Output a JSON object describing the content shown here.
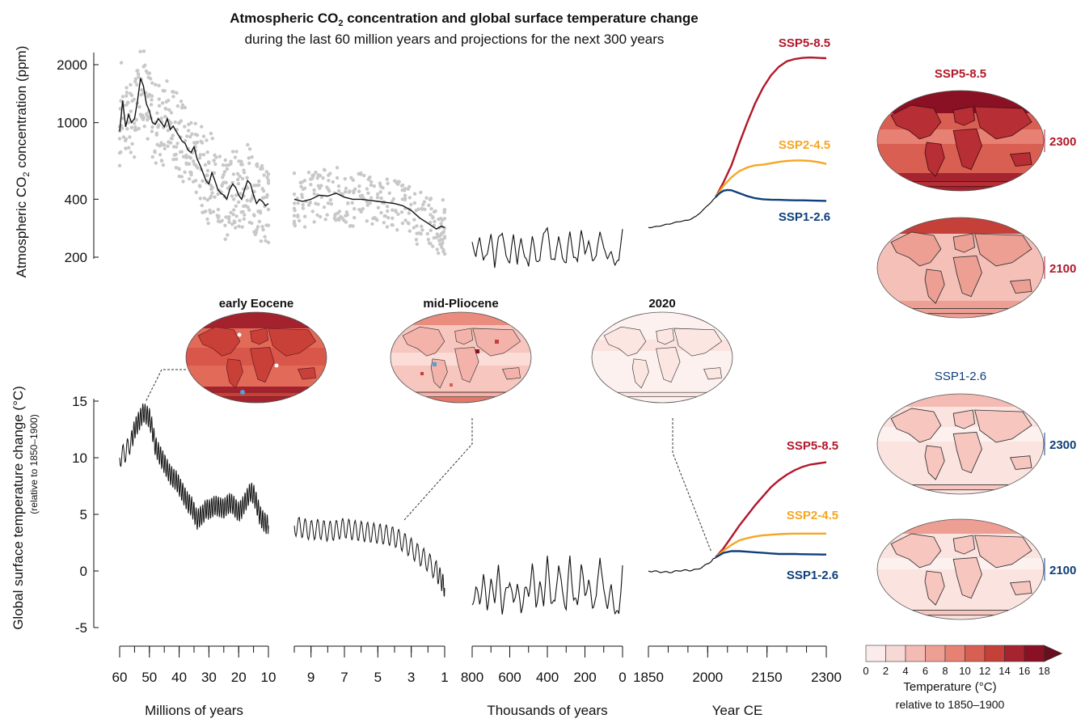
{
  "title": {
    "line1_prefix": "Atmospheric CO",
    "line1_sub": "2",
    "line1_suffix": " concentration and global surface temperature change",
    "line2": "during the last 60 million years and projections for the next 300 years"
  },
  "colors": {
    "ssp585": "#b2182b",
    "ssp245": "#f5a623",
    "ssp126": "#0f3f7a",
    "proxy_points": "#c8c8c8",
    "line": "#111111"
  },
  "maps": {
    "eocene_label": "early Eocene",
    "pliocene_label": "mid-Pliocene",
    "present_label": "2020",
    "high_header": "SSP5-8.5",
    "low_header": "SSP1-2.6",
    "year_2300": "2300",
    "year_2100": "2100"
  },
  "colorbar": {
    "ticks": [
      "0",
      "2",
      "4",
      "6",
      "8",
      "10",
      "12",
      "14",
      "16",
      "18"
    ],
    "colors": [
      "#fbeceb",
      "#f8d8d4",
      "#f3bbb3",
      "#ee9f94",
      "#e78173",
      "#d95f52",
      "#c44039",
      "#a52430",
      "#8a1024"
    ],
    "label_line1": "Temperature (°C)",
    "label_line2": "relative to 1850–1900"
  },
  "chart_data": [
    {
      "type": "line",
      "panel": "co2",
      "ylabel_prefix": "Atmospheric CO",
      "ylabel_sub": "2",
      "ylabel_suffix": " concentration (ppm)",
      "yscale": "log",
      "yticks": [
        200,
        400,
        1000,
        2000
      ],
      "ylim": [
        150,
        2600
      ],
      "segments": [
        {
          "name": "Millions of years",
          "xlim": [
            60,
            10
          ],
          "xticks": [
            60,
            50,
            40,
            30,
            20,
            10
          ],
          "x": [
            60,
            59,
            58,
            57,
            56,
            55,
            54,
            53,
            52,
            51,
            50,
            49,
            48,
            47,
            46,
            45,
            44,
            43,
            42,
            41,
            40,
            39,
            38,
            37,
            36,
            35,
            34,
            33,
            32,
            31,
            30,
            29,
            28,
            27,
            26,
            25,
            24,
            23,
            22,
            21,
            20,
            19,
            18,
            17,
            16,
            15,
            14,
            13,
            12,
            11,
            10
          ],
          "y": [
            900,
            1300,
            950,
            1100,
            1000,
            1050,
            1300,
            1700,
            1550,
            1250,
            1150,
            1000,
            980,
            1050,
            1000,
            950,
            1050,
            920,
            960,
            900,
            850,
            800,
            780,
            720,
            700,
            750,
            650,
            600,
            550,
            500,
            480,
            550,
            500,
            450,
            430,
            420,
            400,
            450,
            480,
            460,
            420,
            400,
            450,
            500,
            480,
            420,
            380,
            400,
            390,
            370,
            380
          ]
        },
        {
          "name": "Millions of years",
          "xlim": [
            10,
            1
          ],
          "xticks": [
            9,
            7,
            5,
            3,
            1
          ],
          "x": [
            10,
            9.5,
            9,
            8.5,
            8,
            7.5,
            7,
            6.5,
            6,
            5.5,
            5,
            4.5,
            4,
            3.5,
            3,
            2.5,
            2,
            1.5,
            1.2,
            1
          ],
          "y": [
            400,
            390,
            400,
            420,
            415,
            430,
            410,
            400,
            400,
            395,
            390,
            385,
            380,
            370,
            350,
            320,
            300,
            280,
            290,
            285
          ]
        },
        {
          "name": "Thousands of years",
          "xlim": [
            800,
            0
          ],
          "xticks": [
            800,
            600,
            400,
            200,
            0
          ],
          "x": [
            800,
            780,
            760,
            740,
            720,
            700,
            680,
            660,
            640,
            620,
            600,
            580,
            560,
            540,
            520,
            500,
            480,
            460,
            440,
            420,
            400,
            380,
            360,
            340,
            320,
            300,
            280,
            260,
            240,
            220,
            200,
            180,
            160,
            140,
            120,
            100,
            80,
            60,
            40,
            20,
            0
          ],
          "y": [
            240,
            200,
            255,
            190,
            210,
            260,
            180,
            250,
            270,
            200,
            190,
            260,
            185,
            250,
            200,
            180,
            255,
            195,
            190,
            270,
            280,
            200,
            190,
            260,
            195,
            190,
            270,
            200,
            190,
            275,
            210,
            240,
            195,
            200,
            275,
            220,
            200,
            210,
            185,
            190,
            280
          ]
        },
        {
          "name": "Year CE",
          "xlim": [
            1850,
            2300
          ],
          "xticks": [
            1850,
            2000,
            2150,
            2300
          ],
          "historical": {
            "x": [
              1850,
              1870,
              1890,
              1910,
              1930,
              1950,
              1970,
              1990,
              2010,
              2020
            ],
            "y": [
              285,
              288,
              294,
              300,
              307,
              311,
              325,
              354,
              389,
              410
            ]
          },
          "scenarios": [
            {
              "name": "SSP5-8.5",
              "x": [
                2020,
                2040,
                2060,
                2080,
                2100,
                2120,
                2140,
                2160,
                2180,
                2200,
                2220,
                2240,
                2260,
                2280,
                2300
              ],
              "y": [
                410,
                490,
                600,
                780,
                1000,
                1260,
                1520,
                1760,
                1950,
                2080,
                2140,
                2170,
                2180,
                2170,
                2160
              ]
            },
            {
              "name": "SSP2-4.5",
              "x": [
                2020,
                2040,
                2060,
                2080,
                2100,
                2120,
                2140,
                2160,
                2180,
                2200,
                2220,
                2240,
                2260,
                2280,
                2300
              ],
              "y": [
                410,
                470,
                520,
                560,
                585,
                600,
                605,
                615,
                625,
                632,
                636,
                636,
                632,
                624,
                610
              ]
            },
            {
              "name": "SSP1-2.6",
              "x": [
                2020,
                2030,
                2040,
                2050,
                2060,
                2080,
                2100,
                2120,
                2140,
                2160,
                2180,
                2200,
                2220,
                2240,
                2260,
                2280,
                2300
              ],
              "y": [
                410,
                430,
                443,
                447,
                445,
                430,
                415,
                405,
                400,
                398,
                397,
                396,
                395,
                395,
                394,
                393,
                392
              ]
            }
          ]
        }
      ]
    },
    {
      "type": "line",
      "panel": "temperature",
      "ylabel": "Global surface temperature change (°C)",
      "ylabel_sub": "(relative to 1850–1900)",
      "yticks": [
        -5,
        0,
        5,
        10,
        15
      ],
      "ylim": [
        -6,
        16
      ],
      "segments": [
        {
          "name": "Millions of years",
          "xlim": [
            60,
            10
          ],
          "xticks": [
            60,
            50,
            40,
            30,
            20,
            10
          ],
          "xlabel": "Millions of years",
          "x": [
            60,
            58,
            56,
            55,
            54,
            53,
            52,
            51,
            50,
            49,
            48,
            47,
            46,
            45,
            44,
            43,
            42,
            41,
            40,
            39,
            38,
            37,
            36,
            35,
            34,
            33,
            32,
            31,
            30,
            29,
            28,
            27,
            26,
            25,
            24,
            23,
            22,
            21,
            20,
            19,
            18,
            17,
            16,
            15,
            14,
            13,
            12,
            11,
            10
          ],
          "y": [
            10,
            10.5,
            11.5,
            12.5,
            13,
            13.5,
            14,
            13.8,
            13.5,
            12.5,
            11,
            10.5,
            10,
            9.5,
            9,
            8.5,
            8.2,
            8,
            7.5,
            7,
            6.5,
            6,
            5.8,
            5.2,
            4.5,
            4.8,
            5,
            5.5,
            5.4,
            5.6,
            5.8,
            5.7,
            5.6,
            5.5,
            5.8,
            6,
            5.9,
            5.5,
            5.2,
            5.5,
            6,
            6.5,
            7,
            6.8,
            6,
            5,
            4.5,
            4.2,
            4
          ]
        },
        {
          "name": "Millions of years",
          "xlim": [
            10,
            1
          ],
          "xticks": [
            9,
            7,
            5,
            3,
            1
          ],
          "x": [
            10,
            9.5,
            9,
            8.5,
            8,
            7.5,
            7,
            6.5,
            6,
            5.5,
            5,
            4.5,
            4,
            3.5,
            3,
            2.5,
            2,
            1.5,
            1.2,
            1
          ],
          "y": [
            4,
            3.8,
            3.6,
            3.7,
            3.5,
            3.6,
            3.8,
            3.6,
            3.5,
            3.4,
            3.3,
            3.2,
            3.0,
            2.6,
            2.0,
            1.4,
            0.8,
            0.0,
            -0.8,
            -1.5
          ]
        },
        {
          "name": "Thousands of years",
          "xlim": [
            800,
            0
          ],
          "xticks": [
            800,
            600,
            400,
            200,
            0
          ],
          "xlabel": "Thousands of years",
          "x": [
            800,
            780,
            760,
            740,
            720,
            700,
            680,
            660,
            640,
            620,
            600,
            580,
            560,
            540,
            520,
            500,
            480,
            460,
            440,
            420,
            400,
            380,
            360,
            340,
            320,
            300,
            280,
            260,
            240,
            220,
            200,
            180,
            160,
            140,
            120,
            100,
            80,
            60,
            40,
            20,
            0
          ],
          "y": [
            -3,
            -1.5,
            -2.8,
            -0.5,
            -3.2,
            -1,
            -2.5,
            0.2,
            -3.5,
            -1.8,
            -0.8,
            -3,
            -1,
            -3.8,
            -1.5,
            -2.2,
            0.5,
            -3,
            -1.2,
            -2.8,
            1,
            -2.5,
            -3,
            0.8,
            -2,
            -3.2,
            1.2,
            -2.5,
            -3,
            0.5,
            -2,
            -1,
            -3,
            -2.5,
            1.5,
            -2,
            -3,
            -1.5,
            -3.5,
            -4,
            0.5
          ]
        },
        {
          "name": "Year CE",
          "xlim": [
            1850,
            2300
          ],
          "xticks": [
            1850,
            2000,
            2150,
            2300
          ],
          "xlabel": "Year CE",
          "historical": {
            "x": [
              1850,
              1870,
              1890,
              1910,
              1930,
              1950,
              1970,
              1990,
              2010,
              2020
            ],
            "y": [
              0,
              -0.05,
              -0.1,
              -0.1,
              0.05,
              0.05,
              0.1,
              0.4,
              0.9,
              1.2
            ]
          },
          "scenarios": [
            {
              "name": "SSP5-8.5",
              "x": [
                2020,
                2040,
                2060,
                2080,
                2100,
                2120,
                2140,
                2160,
                2180,
                2200,
                2220,
                2240,
                2260,
                2280,
                2300
              ],
              "y": [
                1.2,
                2.0,
                3.0,
                4.0,
                4.9,
                5.8,
                6.6,
                7.4,
                8.0,
                8.5,
                8.9,
                9.2,
                9.4,
                9.5,
                9.6
              ]
            },
            {
              "name": "SSP2-4.5",
              "x": [
                2020,
                2040,
                2060,
                2080,
                2100,
                2120,
                2140,
                2160,
                2180,
                2200,
                2220,
                2240,
                2260,
                2280,
                2300
              ],
              "y": [
                1.2,
                1.8,
                2.3,
                2.7,
                2.9,
                3.05,
                3.15,
                3.2,
                3.25,
                3.28,
                3.3,
                3.3,
                3.3,
                3.3,
                3.3
              ]
            },
            {
              "name": "SSP1-2.6",
              "x": [
                2020,
                2040,
                2060,
                2080,
                2100,
                2120,
                2140,
                2160,
                2180,
                2200,
                2220,
                2240,
                2260,
                2280,
                2300
              ],
              "y": [
                1.2,
                1.6,
                1.75,
                1.75,
                1.7,
                1.65,
                1.6,
                1.55,
                1.5,
                1.5,
                1.5,
                1.48,
                1.47,
                1.46,
                1.45
              ]
            }
          ]
        }
      ]
    }
  ]
}
